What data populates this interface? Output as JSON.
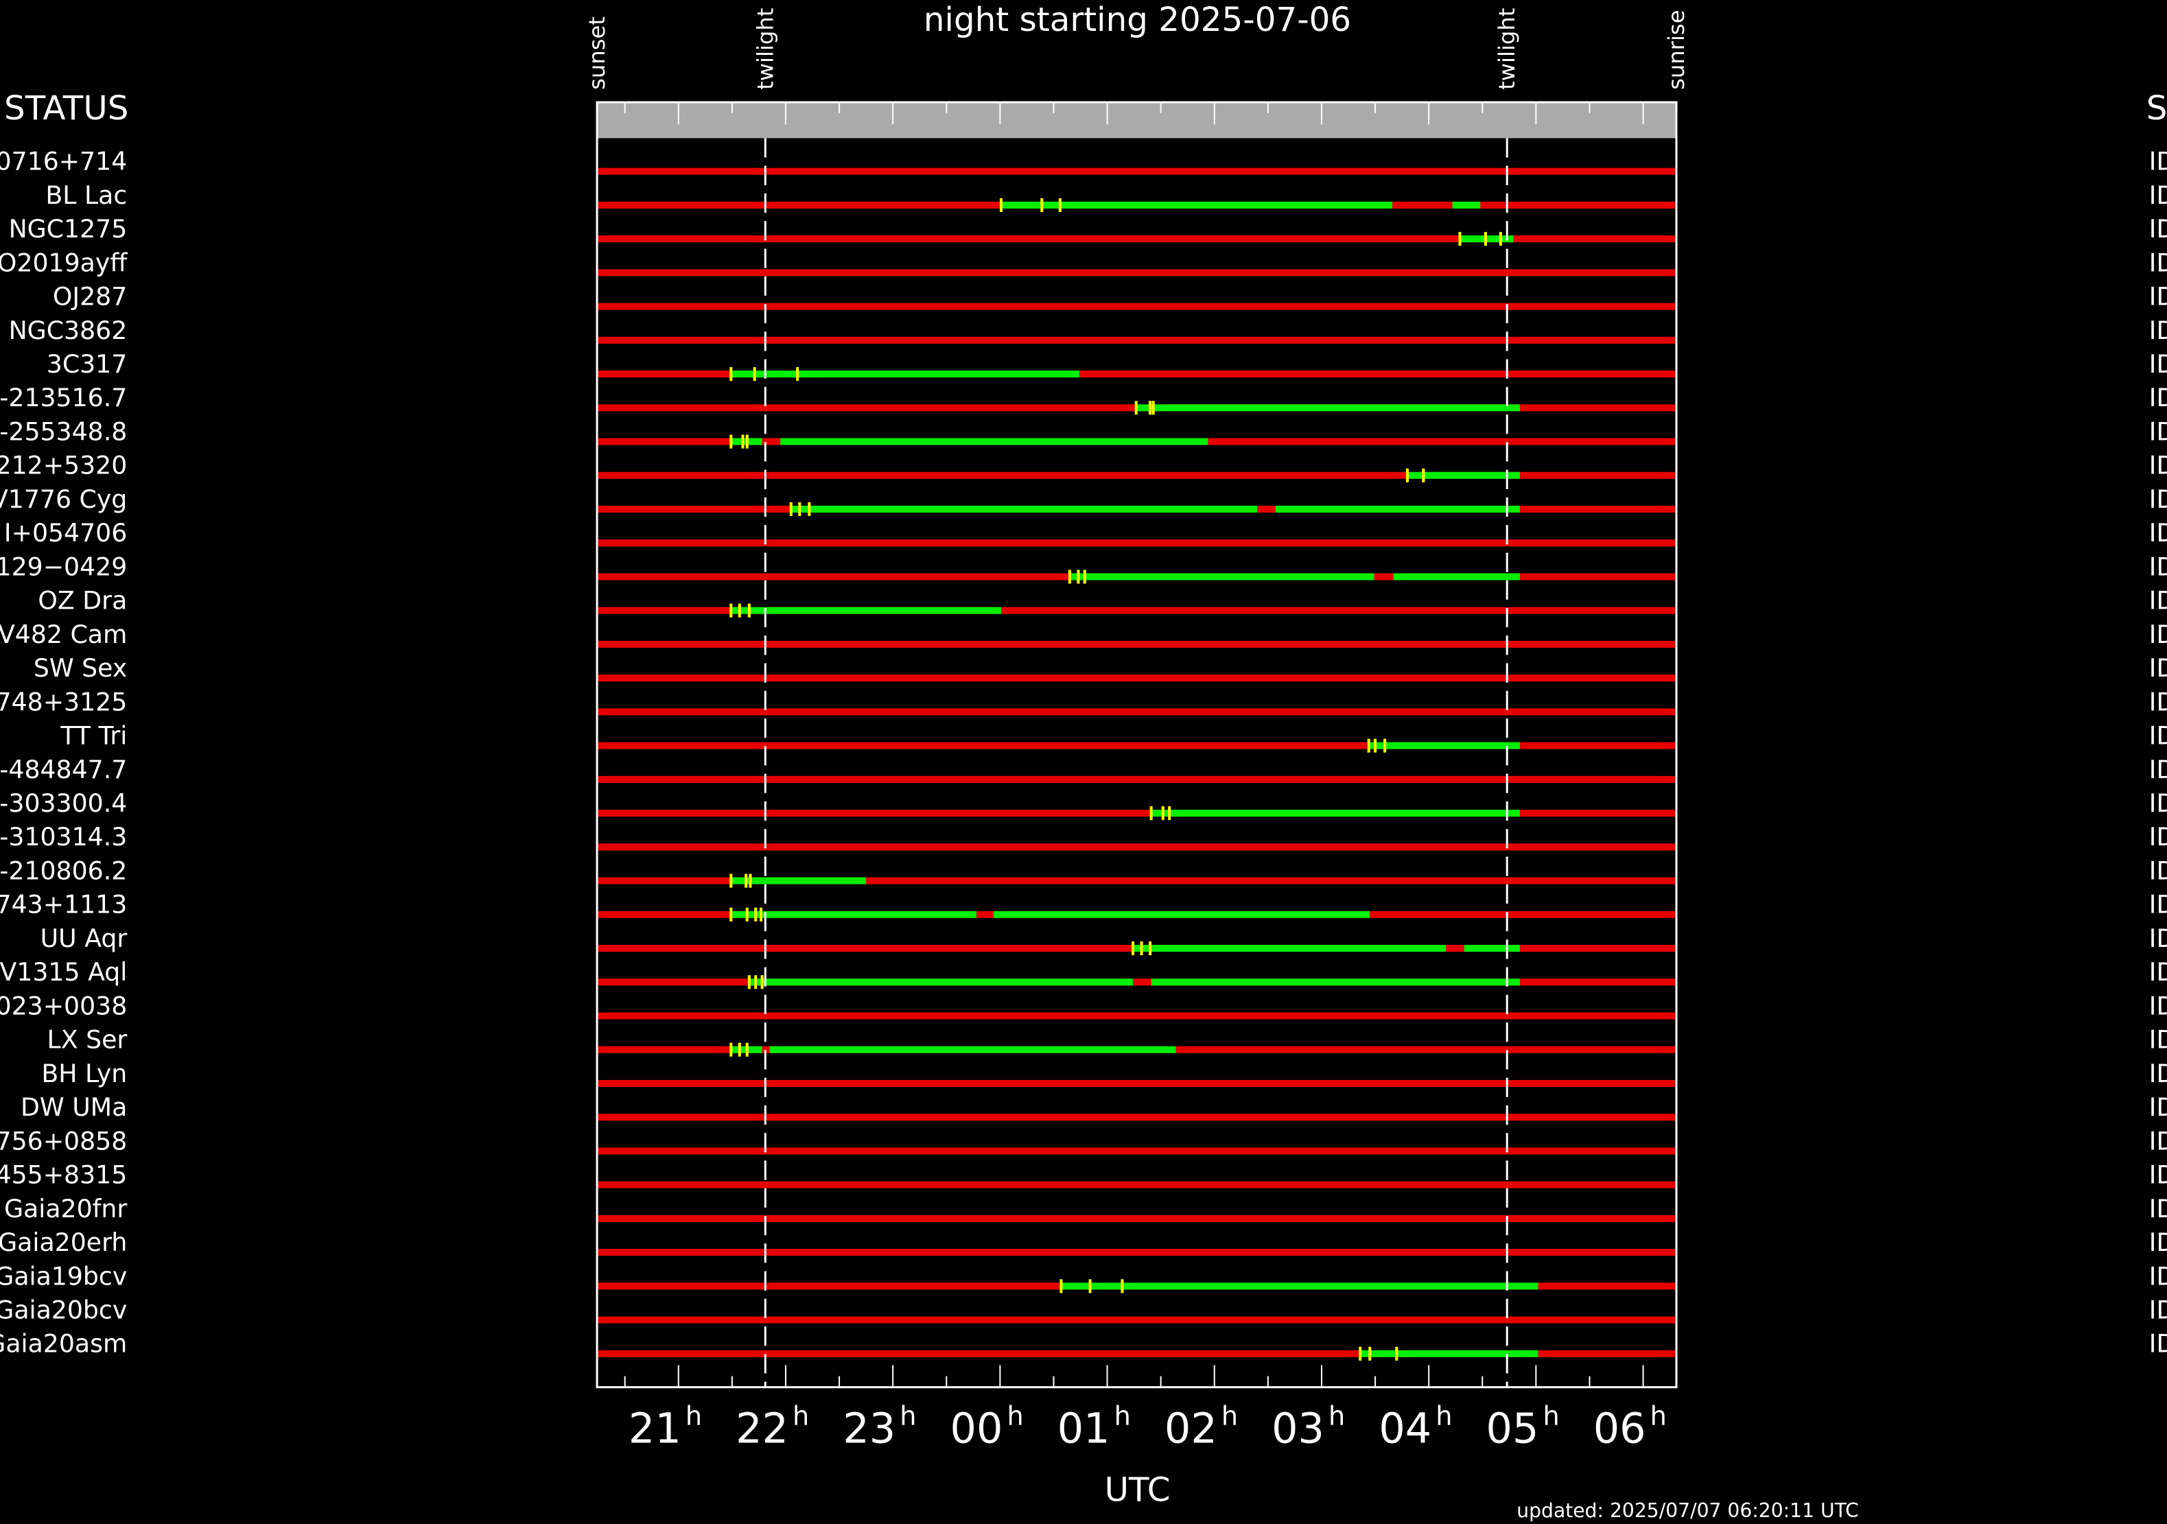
{
  "chart_data": {
    "type": "timeline",
    "title": "night starting 2025-07-06",
    "xlabel": "UTC",
    "footer": "updated: 2025/07/07 06:20:11 UTC",
    "status_header": "STATUS",
    "right_header": "S",
    "xlim": [
      20.24,
      30.31
    ],
    "xticks": [
      {
        "value": 21,
        "label": "21"
      },
      {
        "value": 22,
        "label": "22"
      },
      {
        "value": 23,
        "label": "23"
      },
      {
        "value": 24,
        "label": "00"
      },
      {
        "value": 25,
        "label": "01"
      },
      {
        "value": 26,
        "label": "02"
      },
      {
        "value": 27,
        "label": "03"
      },
      {
        "value": 28,
        "label": "04"
      },
      {
        "value": 29,
        "label": "05"
      },
      {
        "value": 30,
        "label": "06"
      }
    ],
    "tick_suffix": "h",
    "xticks_minor": [
      20.5,
      21.5,
      22.5,
      23.5,
      24.5,
      25.5,
      26.5,
      27.5,
      28.5,
      29.5
    ],
    "events": [
      {
        "label": "sunset",
        "value": 20.24
      },
      {
        "label": "twilight",
        "value": 21.81
      },
      {
        "label": "twilight",
        "value": 28.73
      },
      {
        "label": "sunrise",
        "value": 30.31
      }
    ],
    "colors": {
      "base": "#e60000",
      "window": "#00ee00",
      "mark": "#ffff00",
      "band": "#aaaaaa"
    },
    "targets": [
      {
        "name": "0716+714",
        "status": "ID",
        "windows": [],
        "marks": []
      },
      {
        "name": "BL Lac",
        "status": "ID",
        "windows": [
          [
            24.01,
            27.66
          ],
          [
            28.22,
            28.48
          ]
        ],
        "marks": [
          24.01,
          24.39,
          24.56
        ]
      },
      {
        "name": "NGC1275",
        "status": "ID",
        "windows": [
          [
            28.29,
            28.79
          ]
        ],
        "marks": [
          28.29,
          28.53,
          28.67
        ]
      },
      {
        "name": "O2019ayff",
        "status": "ID",
        "windows": [],
        "marks": []
      },
      {
        "name": "OJ287",
        "status": "ID",
        "windows": [],
        "marks": []
      },
      {
        "name": "NGC3862",
        "status": "ID",
        "windows": [],
        "marks": []
      },
      {
        "name": "3C317",
        "status": "ID",
        "windows": [
          [
            21.49,
            24.74
          ]
        ],
        "marks": [
          21.49,
          21.71,
          22.11
        ]
      },
      {
        "name": "-213516.7",
        "status": "ID",
        "windows": [
          [
            25.27,
            28.85
          ]
        ],
        "marks": [
          25.27,
          25.4,
          25.43
        ]
      },
      {
        "name": "-255348.8",
        "status": "ID",
        "windows": [
          [
            21.49,
            21.78
          ],
          [
            21.95,
            25.94
          ]
        ],
        "marks": [
          21.49,
          21.6,
          21.64
        ]
      },
      {
        "name": "212+5320",
        "status": "ID",
        "windows": [
          [
            27.8,
            28.85
          ]
        ],
        "marks": [
          27.8,
          27.95
        ]
      },
      {
        "name": "V1776 Cyg",
        "status": "ID",
        "windows": [
          [
            22.05,
            26.4
          ],
          [
            26.57,
            28.85
          ]
        ],
        "marks": [
          22.05,
          22.13,
          22.22
        ]
      },
      {
        "name": "I+054706",
        "status": "ID",
        "windows": [],
        "marks": []
      },
      {
        "name": "129−0429",
        "status": "ID",
        "windows": [
          [
            24.65,
            27.49
          ],
          [
            27.67,
            28.85
          ]
        ],
        "marks": [
          24.65,
          24.73,
          24.79
        ]
      },
      {
        "name": "OZ Dra",
        "status": "ID",
        "windows": [
          [
            21.49,
            24.01
          ]
        ],
        "marks": [
          21.49,
          21.57,
          21.66
        ]
      },
      {
        "name": "V482 Cam",
        "status": "ID",
        "windows": [],
        "marks": []
      },
      {
        "name": "SW Sex",
        "status": "ID",
        "windows": [],
        "marks": []
      },
      {
        "name": "748+3125",
        "status": "ID",
        "windows": [],
        "marks": []
      },
      {
        "name": "TT Tri",
        "status": "ID",
        "windows": [
          [
            27.44,
            28.85
          ]
        ],
        "marks": [
          27.44,
          27.5,
          27.59
        ]
      },
      {
        "name": "-484847.7",
        "status": "ID",
        "windows": [],
        "marks": []
      },
      {
        "name": "-303300.4",
        "status": "ID",
        "windows": [
          [
            25.41,
            28.85
          ]
        ],
        "marks": [
          25.41,
          25.52,
          25.58
        ]
      },
      {
        "name": "-310314.3",
        "status": "ID",
        "windows": [],
        "marks": []
      },
      {
        "name": "-210806.2",
        "status": "ID",
        "windows": [
          [
            21.49,
            22.75
          ]
        ],
        "marks": [
          21.49,
          21.63,
          21.67
        ]
      },
      {
        "name": "743+1113",
        "status": "ID",
        "windows": [
          [
            21.49,
            23.78
          ],
          [
            23.94,
            27.45
          ]
        ],
        "marks": [
          21.49,
          21.64,
          21.72,
          21.77
        ]
      },
      {
        "name": "UU Aqr",
        "status": "ID",
        "windows": [
          [
            25.24,
            28.16
          ],
          [
            28.33,
            28.85
          ]
        ],
        "marks": [
          25.24,
          25.32,
          25.4
        ]
      },
      {
        "name": "V1315 Aql",
        "status": "ID",
        "windows": [
          [
            21.66,
            25.24
          ],
          [
            25.41,
            28.85
          ]
        ],
        "marks": [
          21.66,
          21.72,
          21.78
        ]
      },
      {
        "name": "023+0038",
        "status": "ID",
        "windows": [],
        "marks": []
      },
      {
        "name": "LX Ser",
        "status": "ID",
        "windows": [
          [
            21.49,
            21.78
          ],
          [
            21.85,
            25.64
          ]
        ],
        "marks": [
          21.49,
          21.57,
          21.64
        ]
      },
      {
        "name": "BH Lyn",
        "status": "ID",
        "windows": [],
        "marks": []
      },
      {
        "name": "DW UMa",
        "status": "ID",
        "windows": [],
        "marks": []
      },
      {
        "name": "756+0858",
        "status": "ID",
        "windows": [],
        "marks": []
      },
      {
        "name": "455+8315",
        "status": "ID",
        "windows": [],
        "marks": []
      },
      {
        "name": "Gaia20fnr",
        "status": "ID",
        "windows": [],
        "marks": []
      },
      {
        "name": "Gaia20erh",
        "status": "ID",
        "windows": [],
        "marks": []
      },
      {
        "name": "Gaia19bcv",
        "status": "ID",
        "windows": [
          [
            24.57,
            29.02
          ]
        ],
        "marks": [
          24.57,
          24.84,
          25.14
        ]
      },
      {
        "name": "Gaia20bcv",
        "status": "ID",
        "windows": [],
        "marks": []
      },
      {
        "name": "Gaia20asm",
        "status": "ID",
        "windows": [
          [
            27.36,
            29.02
          ]
        ],
        "marks": [
          27.36,
          27.45,
          27.7
        ]
      }
    ]
  }
}
